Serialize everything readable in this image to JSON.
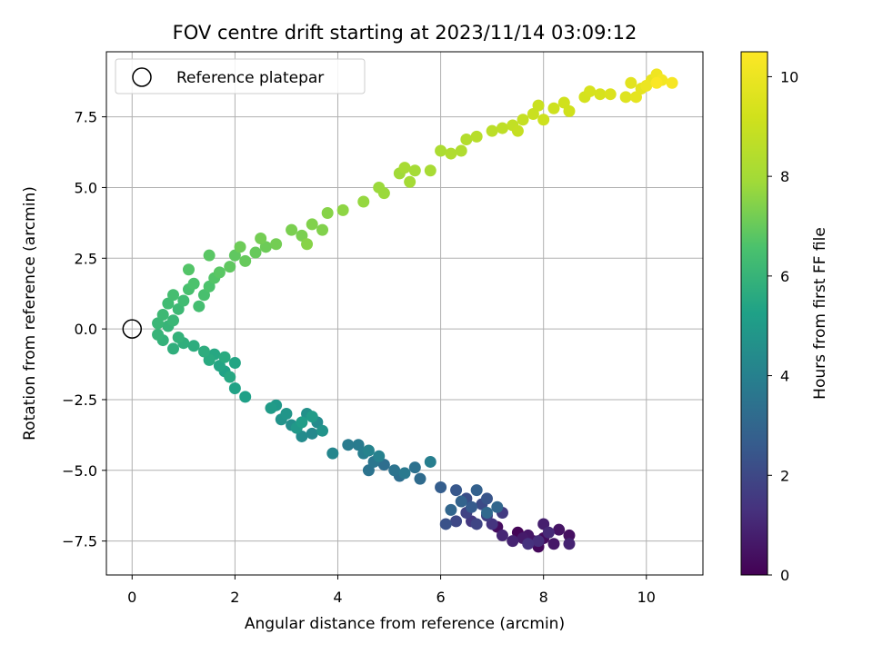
{
  "chart_data": {
    "type": "scatter",
    "title": "FOV centre drift starting at 2023/11/14 03:09:12",
    "xlabel": "Angular distance from reference (arcmin)",
    "ylabel": "Rotation from reference (arcmin)",
    "xlim": [
      -0.5,
      11.1
    ],
    "ylim": [
      -8.7,
      9.8
    ],
    "xticks": [
      0,
      2,
      4,
      6,
      8,
      10
    ],
    "yticks": [
      -7.5,
      -5.0,
      -2.5,
      0.0,
      2.5,
      5.0,
      7.5
    ],
    "xtick_labels": [
      "0",
      "2",
      "4",
      "6",
      "8",
      "10"
    ],
    "ytick_labels": [
      "−7.5",
      "−5.0",
      "−2.5",
      "0.0",
      "2.5",
      "5.0",
      "7.5"
    ],
    "grid": true,
    "colormap": "viridis",
    "colorbar": {
      "label": "Hours from first FF file",
      "range": [
        0,
        10.5
      ],
      "ticks": [
        0,
        2,
        4,
        6,
        8,
        10
      ],
      "tick_labels": [
        "0",
        "2",
        "4",
        "6",
        "8",
        "10"
      ]
    },
    "legend": {
      "position": "upper-left",
      "entries": [
        {
          "label": "Reference platepar",
          "marker": "open-circle"
        }
      ]
    },
    "reference_point": {
      "x": 0,
      "y": 0
    },
    "series": [
      {
        "points": [
          {
            "x": 7.5,
            "y": -7.2,
            "c": 0.1
          },
          {
            "x": 7.9,
            "y": -7.7,
            "c": 0.2
          },
          {
            "x": 8.0,
            "y": -7.4,
            "c": 0.3
          },
          {
            "x": 7.1,
            "y": -7.0,
            "c": 0.3
          },
          {
            "x": 8.5,
            "y": -7.3,
            "c": 0.4
          },
          {
            "x": 8.3,
            "y": -7.1,
            "c": 0.5
          },
          {
            "x": 7.8,
            "y": -7.5,
            "c": 0.5
          },
          {
            "x": 7.7,
            "y": -7.3,
            "c": 0.6
          },
          {
            "x": 8.2,
            "y": -7.6,
            "c": 0.6
          },
          {
            "x": 7.6,
            "y": -7.4,
            "c": 0.7
          },
          {
            "x": 8.0,
            "y": -6.9,
            "c": 0.8
          },
          {
            "x": 7.4,
            "y": -7.5,
            "c": 0.9
          },
          {
            "x": 8.5,
            "y": -7.6,
            "c": 0.9
          },
          {
            "x": 7.2,
            "y": -7.3,
            "c": 1.0
          },
          {
            "x": 8.1,
            "y": -7.2,
            "c": 1.1
          },
          {
            "x": 7.9,
            "y": -7.5,
            "c": 1.2
          },
          {
            "x": 7.7,
            "y": -7.6,
            "c": 1.3
          },
          {
            "x": 7.0,
            "y": -6.9,
            "c": 1.4
          },
          {
            "x": 6.6,
            "y": -6.8,
            "c": 1.5
          },
          {
            "x": 7.2,
            "y": -6.5,
            "c": 1.6
          },
          {
            "x": 6.9,
            "y": -6.6,
            "c": 1.7
          },
          {
            "x": 6.5,
            "y": -6.5,
            "c": 1.8
          },
          {
            "x": 6.7,
            "y": -6.9,
            "c": 1.9
          },
          {
            "x": 6.3,
            "y": -6.8,
            "c": 2.0
          },
          {
            "x": 6.8,
            "y": -6.2,
            "c": 2.1
          },
          {
            "x": 6.5,
            "y": -6.0,
            "c": 2.2
          },
          {
            "x": 6.1,
            "y": -6.9,
            "c": 2.3
          },
          {
            "x": 6.9,
            "y": -6.0,
            "c": 2.4
          },
          {
            "x": 6.3,
            "y": -5.7,
            "c": 2.5
          },
          {
            "x": 6.6,
            "y": -6.3,
            "c": 2.6
          },
          {
            "x": 6.0,
            "y": -5.6,
            "c": 2.7
          },
          {
            "x": 6.7,
            "y": -5.7,
            "c": 2.8
          },
          {
            "x": 6.4,
            "y": -6.1,
            "c": 2.9
          },
          {
            "x": 7.1,
            "y": -6.3,
            "c": 3.0
          },
          {
            "x": 6.2,
            "y": -6.4,
            "c": 3.0
          },
          {
            "x": 6.9,
            "y": -6.5,
            "c": 3.1
          },
          {
            "x": 5.6,
            "y": -5.3,
            "c": 3.2
          },
          {
            "x": 5.2,
            "y": -5.2,
            "c": 3.3
          },
          {
            "x": 4.9,
            "y": -4.8,
            "c": 3.3
          },
          {
            "x": 5.5,
            "y": -4.9,
            "c": 3.4
          },
          {
            "x": 4.6,
            "y": -5.0,
            "c": 3.5
          },
          {
            "x": 5.1,
            "y": -5.0,
            "c": 3.5
          },
          {
            "x": 4.7,
            "y": -4.7,
            "c": 3.6
          },
          {
            "x": 5.3,
            "y": -5.1,
            "c": 3.7
          },
          {
            "x": 4.4,
            "y": -4.1,
            "c": 3.8
          },
          {
            "x": 4.2,
            "y": -4.1,
            "c": 3.8
          },
          {
            "x": 4.5,
            "y": -4.4,
            "c": 3.9
          },
          {
            "x": 5.8,
            "y": -4.7,
            "c": 3.9
          },
          {
            "x": 4.8,
            "y": -4.5,
            "c": 4.0
          },
          {
            "x": 4.6,
            "y": -4.3,
            "c": 4.1
          },
          {
            "x": 3.9,
            "y": -4.4,
            "c": 4.2
          },
          {
            "x": 3.5,
            "y": -3.7,
            "c": 4.3
          },
          {
            "x": 3.3,
            "y": -3.8,
            "c": 4.4
          },
          {
            "x": 3.6,
            "y": -3.3,
            "c": 4.4
          },
          {
            "x": 3.1,
            "y": -3.4,
            "c": 4.5
          },
          {
            "x": 3.4,
            "y": -3.0,
            "c": 4.6
          },
          {
            "x": 2.9,
            "y": -3.2,
            "c": 4.7
          },
          {
            "x": 3.7,
            "y": -3.6,
            "c": 4.7
          },
          {
            "x": 3.0,
            "y": -3.0,
            "c": 4.8
          },
          {
            "x": 2.8,
            "y": -2.7,
            "c": 4.9
          },
          {
            "x": 3.2,
            "y": -3.5,
            "c": 4.9
          },
          {
            "x": 3.5,
            "y": -3.1,
            "c": 5.0
          },
          {
            "x": 2.7,
            "y": -2.8,
            "c": 5.0
          },
          {
            "x": 3.3,
            "y": -3.3,
            "c": 5.1
          },
          {
            "x": 2.2,
            "y": -2.4,
            "c": 5.2
          },
          {
            "x": 2.0,
            "y": -2.1,
            "c": 5.3
          },
          {
            "x": 1.8,
            "y": -1.5,
            "c": 5.3
          },
          {
            "x": 2.0,
            "y": -1.2,
            "c": 5.4
          },
          {
            "x": 1.7,
            "y": -1.3,
            "c": 5.4
          },
          {
            "x": 1.6,
            "y": -0.9,
            "c": 5.5
          },
          {
            "x": 1.9,
            "y": -1.7,
            "c": 5.5
          },
          {
            "x": 1.5,
            "y": -1.1,
            "c": 5.6
          },
          {
            "x": 1.8,
            "y": -1.0,
            "c": 5.6
          },
          {
            "x": 1.4,
            "y": -0.8,
            "c": 5.7
          },
          {
            "x": 1.2,
            "y": -0.6,
            "c": 5.7
          },
          {
            "x": 0.8,
            "y": -0.7,
            "c": 5.8
          },
          {
            "x": 1.0,
            "y": -0.5,
            "c": 5.8
          },
          {
            "x": 0.6,
            "y": -0.4,
            "c": 5.9
          },
          {
            "x": 0.9,
            "y": -0.3,
            "c": 5.9
          },
          {
            "x": 0.5,
            "y": -0.2,
            "c": 6.0
          },
          {
            "x": 0.7,
            "y": 0.1,
            "c": 6.0
          },
          {
            "x": 0.5,
            "y": 0.2,
            "c": 6.1
          },
          {
            "x": 0.8,
            "y": 0.3,
            "c": 6.1
          },
          {
            "x": 0.6,
            "y": 0.5,
            "c": 6.2
          },
          {
            "x": 0.9,
            "y": 0.7,
            "c": 6.2
          },
          {
            "x": 0.7,
            "y": 0.9,
            "c": 6.3
          },
          {
            "x": 1.0,
            "y": 1.0,
            "c": 6.3
          },
          {
            "x": 0.8,
            "y": 1.2,
            "c": 6.4
          },
          {
            "x": 1.3,
            "y": 0.8,
            "c": 6.4
          },
          {
            "x": 1.1,
            "y": 1.4,
            "c": 6.5
          },
          {
            "x": 1.4,
            "y": 1.2,
            "c": 6.5
          },
          {
            "x": 1.2,
            "y": 1.6,
            "c": 6.6
          },
          {
            "x": 1.5,
            "y": 1.5,
            "c": 6.6
          },
          {
            "x": 1.1,
            "y": 2.1,
            "c": 6.7
          },
          {
            "x": 1.6,
            "y": 1.8,
            "c": 6.7
          },
          {
            "x": 1.7,
            "y": 2.0,
            "c": 6.8
          },
          {
            "x": 1.5,
            "y": 2.6,
            "c": 6.8
          },
          {
            "x": 1.9,
            "y": 2.2,
            "c": 6.9
          },
          {
            "x": 2.0,
            "y": 2.6,
            "c": 6.9
          },
          {
            "x": 2.2,
            "y": 2.4,
            "c": 7.0
          },
          {
            "x": 2.4,
            "y": 2.7,
            "c": 7.0
          },
          {
            "x": 2.1,
            "y": 2.9,
            "c": 7.1
          },
          {
            "x": 2.6,
            "y": 2.9,
            "c": 7.1
          },
          {
            "x": 2.8,
            "y": 3.0,
            "c": 7.2
          },
          {
            "x": 2.5,
            "y": 3.2,
            "c": 7.2
          },
          {
            "x": 3.1,
            "y": 3.5,
            "c": 7.3
          },
          {
            "x": 3.3,
            "y": 3.3,
            "c": 7.3
          },
          {
            "x": 3.5,
            "y": 3.7,
            "c": 7.4
          },
          {
            "x": 3.7,
            "y": 3.5,
            "c": 7.4
          },
          {
            "x": 3.4,
            "y": 3.0,
            "c": 7.5
          },
          {
            "x": 3.8,
            "y": 4.1,
            "c": 7.5
          },
          {
            "x": 4.1,
            "y": 4.2,
            "c": 7.6
          },
          {
            "x": 4.5,
            "y": 4.5,
            "c": 7.7
          },
          {
            "x": 4.8,
            "y": 5.0,
            "c": 7.8
          },
          {
            "x": 4.9,
            "y": 4.8,
            "c": 7.8
          },
          {
            "x": 5.2,
            "y": 5.5,
            "c": 7.9
          },
          {
            "x": 5.4,
            "y": 5.2,
            "c": 8.0
          },
          {
            "x": 5.5,
            "y": 5.6,
            "c": 8.0
          },
          {
            "x": 5.3,
            "y": 5.7,
            "c": 8.1
          },
          {
            "x": 5.8,
            "y": 5.6,
            "c": 8.1
          },
          {
            "x": 6.0,
            "y": 6.3,
            "c": 8.2
          },
          {
            "x": 6.2,
            "y": 6.2,
            "c": 8.3
          },
          {
            "x": 6.4,
            "y": 6.3,
            "c": 8.3
          },
          {
            "x": 6.5,
            "y": 6.7,
            "c": 8.4
          },
          {
            "x": 6.7,
            "y": 6.8,
            "c": 8.5
          },
          {
            "x": 7.0,
            "y": 7.0,
            "c": 8.6
          },
          {
            "x": 7.2,
            "y": 7.1,
            "c": 8.7
          },
          {
            "x": 7.4,
            "y": 7.2,
            "c": 8.8
          },
          {
            "x": 7.6,
            "y": 7.4,
            "c": 8.9
          },
          {
            "x": 7.5,
            "y": 7.0,
            "c": 8.9
          },
          {
            "x": 7.8,
            "y": 7.6,
            "c": 9.0
          },
          {
            "x": 7.9,
            "y": 7.9,
            "c": 9.0
          },
          {
            "x": 8.0,
            "y": 7.4,
            "c": 9.1
          },
          {
            "x": 8.2,
            "y": 7.8,
            "c": 9.1
          },
          {
            "x": 8.4,
            "y": 8.0,
            "c": 9.2
          },
          {
            "x": 8.5,
            "y": 7.7,
            "c": 9.2
          },
          {
            "x": 8.8,
            "y": 8.2,
            "c": 9.3
          },
          {
            "x": 9.1,
            "y": 8.3,
            "c": 9.4
          },
          {
            "x": 8.9,
            "y": 8.4,
            "c": 9.4
          },
          {
            "x": 9.3,
            "y": 8.3,
            "c": 9.5
          },
          {
            "x": 9.6,
            "y": 8.2,
            "c": 9.6
          },
          {
            "x": 9.7,
            "y": 8.7,
            "c": 9.7
          },
          {
            "x": 9.9,
            "y": 8.5,
            "c": 9.8
          },
          {
            "x": 9.8,
            "y": 8.2,
            "c": 9.8
          },
          {
            "x": 10.1,
            "y": 8.8,
            "c": 9.9
          },
          {
            "x": 10.0,
            "y": 8.6,
            "c": 10.0
          },
          {
            "x": 10.2,
            "y": 9.0,
            "c": 10.1
          },
          {
            "x": 10.3,
            "y": 8.8,
            "c": 10.2
          },
          {
            "x": 10.5,
            "y": 8.7,
            "c": 10.3
          },
          {
            "x": 10.2,
            "y": 8.7,
            "c": 10.4
          }
        ]
      }
    ]
  }
}
